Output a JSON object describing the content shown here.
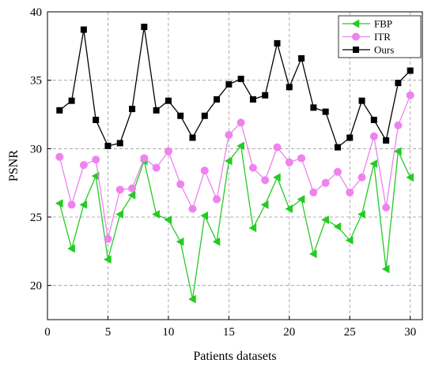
{
  "chart_data": {
    "type": "line",
    "title": "",
    "xlabel": "Patients datasets",
    "ylabel": "PSNR",
    "xlim": [
      0,
      31
    ],
    "ylim": [
      17.5,
      40
    ],
    "xticks": [
      0,
      5,
      10,
      15,
      20,
      25,
      30
    ],
    "yticks": [
      20,
      25,
      30,
      35,
      40
    ],
    "grid": true,
    "legend_position": "top-right",
    "x": [
      1,
      2,
      3,
      4,
      5,
      6,
      7,
      8,
      9,
      10,
      11,
      12,
      13,
      14,
      15,
      16,
      17,
      18,
      19,
      20,
      21,
      22,
      23,
      24,
      25,
      26,
      27,
      28,
      29,
      30
    ],
    "series": [
      {
        "name": "FBP",
        "color": "#22cc22",
        "marker": "triangle-left",
        "values": [
          26.0,
          22.7,
          25.9,
          28.0,
          21.9,
          25.2,
          26.6,
          29.1,
          25.2,
          24.8,
          23.2,
          19.0,
          25.1,
          23.2,
          29.1,
          30.2,
          24.2,
          25.9,
          27.9,
          25.6,
          26.3,
          22.3,
          24.8,
          24.3,
          23.3,
          25.2,
          28.9,
          21.2,
          29.8,
          27.9
        ]
      },
      {
        "name": "ITR",
        "color": "#ee82ee",
        "marker": "circle",
        "values": [
          29.4,
          25.9,
          28.8,
          29.2,
          23.4,
          27.0,
          27.1,
          29.3,
          28.6,
          29.8,
          27.4,
          25.6,
          28.4,
          26.3,
          31.0,
          31.9,
          28.6,
          27.7,
          30.1,
          29.0,
          29.3,
          26.8,
          27.5,
          28.3,
          26.8,
          27.9,
          30.9,
          25.7,
          31.7,
          33.9
        ]
      },
      {
        "name": "Ours",
        "color": "#000000",
        "marker": "square",
        "values": [
          32.8,
          33.5,
          38.7,
          32.1,
          30.2,
          30.4,
          32.9,
          38.9,
          32.8,
          33.5,
          32.4,
          30.8,
          32.4,
          33.6,
          34.7,
          35.1,
          33.6,
          33.9,
          37.7,
          34.5,
          36.6,
          33.0,
          32.7,
          30.1,
          30.8,
          33.5,
          32.1,
          30.6,
          34.8,
          35.7
        ]
      }
    ]
  }
}
